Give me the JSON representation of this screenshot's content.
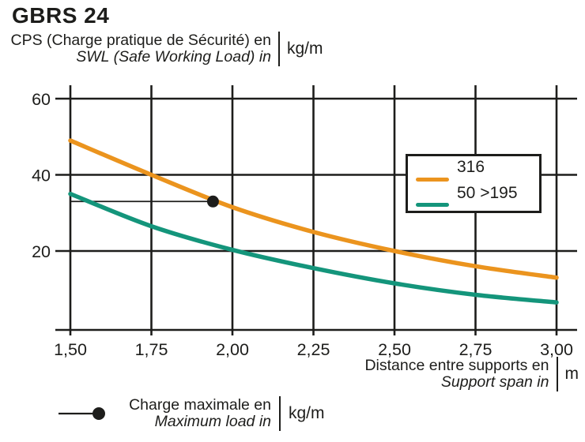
{
  "title": "GBRS 24",
  "y_axis": {
    "label_fr": "CPS (Charge pratique de Sécurité) en",
    "label_en": "SWL (Safe Working Load) in",
    "unit": "kg/m"
  },
  "x_axis": {
    "label_fr": "Distance entre supports en",
    "label_en": "Support span in",
    "unit": "m"
  },
  "legend": {
    "items": [
      {
        "label": "316",
        "color": "#EB941E"
      },
      {
        "label": "50 >195",
        "color": "#14957B"
      }
    ]
  },
  "max_load_note": {
    "label_fr": "Charge maximale en",
    "label_en": "Maximum load in",
    "unit": "kg/m"
  },
  "chart_data": {
    "type": "line",
    "title": "GBRS 24",
    "xlabel": "Distance entre supports en / Support span in (m)",
    "ylabel": "CPS (Charge pratique de Sécurité) en / SWL (Safe Working Load) in (kg/m)",
    "x": [
      1.5,
      1.75,
      2.0,
      2.25,
      2.5,
      2.75,
      3.0
    ],
    "x_tick_labels": [
      "1,50",
      "1,75",
      "2,00",
      "2,25",
      "2,50",
      "2,75",
      "3,00"
    ],
    "y_ticks": [
      20,
      40,
      60
    ],
    "y_tick_labels": [
      "20",
      "40",
      "60"
    ],
    "xlim": [
      1.5,
      3.0
    ],
    "ylim": [
      0,
      63
    ],
    "grid": true,
    "legend_position": "upper right",
    "series": [
      {
        "name": "316",
        "color": "#EB941E",
        "values": [
          49,
          40,
          31.5,
          25,
          20,
          16,
          13
        ]
      },
      {
        "name": "50 >195",
        "color": "#14957B",
        "values": [
          35,
          26.5,
          20.3,
          15.5,
          11.5,
          8.5,
          6.5
        ]
      }
    ],
    "marker_point": {
      "x": 1.94,
      "y": 33,
      "meaning": "maximum load level intersecting 316 curve"
    },
    "marker_color": "#1d1d1b"
  }
}
